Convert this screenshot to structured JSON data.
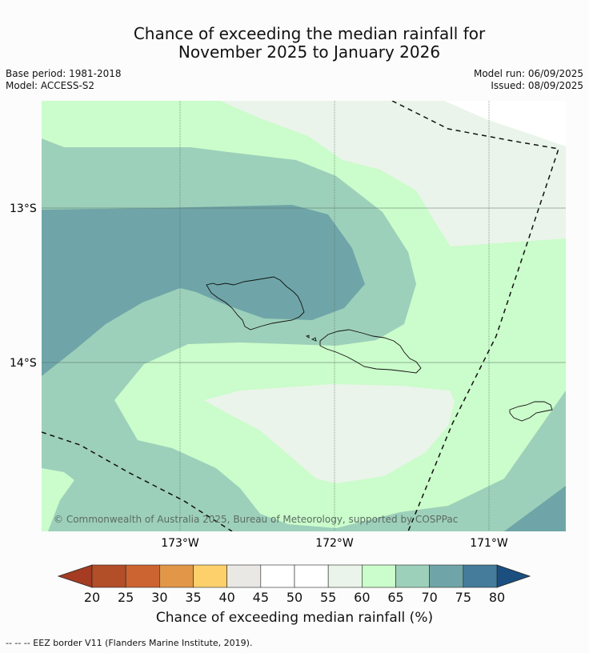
{
  "title_line1": "Chance of exceeding the median rainfall for",
  "title_line2": "November 2025 to January 2026",
  "meta": {
    "base_period": "Base period: 1981-2018",
    "model": "Model: ACCESS-S2",
    "model_run": "Model run: 06/09/2025",
    "issued": "Issued: 08/09/2025"
  },
  "map": {
    "lat_labels": [
      "13°S",
      "14°S"
    ],
    "lon_labels": [
      "173°W",
      "172°W",
      "171°W"
    ],
    "copyright": "© Commonwealth of Australia 2025, Bureau of Meteorology, supported by COSPPac",
    "colors": {
      "c40_45": "#e8e8e4",
      "c45_55": "#ffffff",
      "c55_60": "#eaf4ea",
      "c60_65": "#cbfccb",
      "c65_70": "#9dd0ba",
      "c70_75": "#6fa5a8",
      "c75_80": "#457c9b"
    }
  },
  "colorbar": {
    "ticks": [
      "20",
      "25",
      "30",
      "35",
      "40",
      "45",
      "50",
      "55",
      "60",
      "65",
      "70",
      "75",
      "80"
    ],
    "colors": [
      "#a53b22",
      "#b24e28",
      "#cb6431",
      "#e29647",
      "#fdd06c",
      "#eae8e4",
      "#ffffff",
      "#ffffff",
      "#eaf4ea",
      "#cbfccb",
      "#9dd0ba",
      "#6fa5a8",
      "#457c9b"
    ],
    "under_color": "#a53b22",
    "over_color": "#1b4f80",
    "title": "Chance of exceeding median rainfall (%)"
  },
  "footnote": "--  --  -- EEZ border V11 (Flanders Marine Institute, 2019)."
}
